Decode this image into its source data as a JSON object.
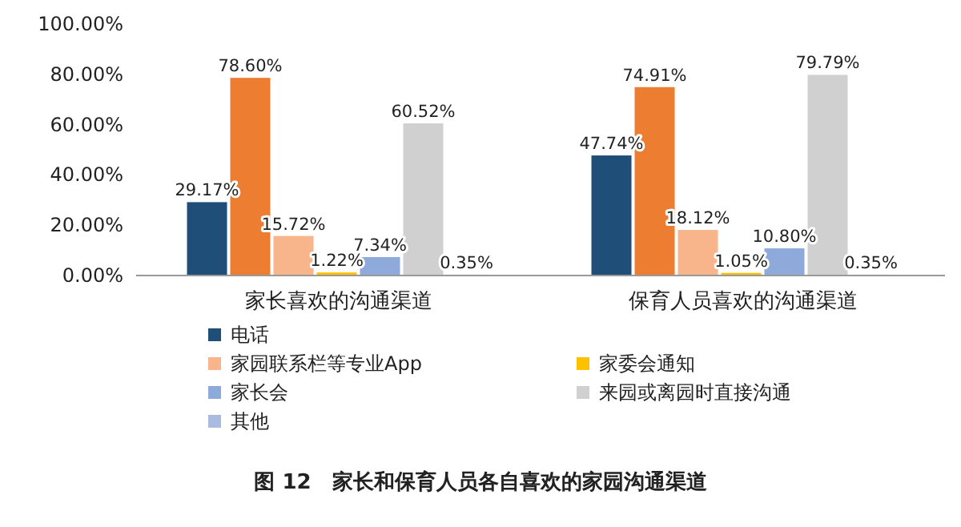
{
  "chart_data": {
    "type": "bar",
    "title": "图 12　家长和保育人员各自喜欢的家园沟通渠道",
    "categories": [
      "家长喜欢的沟通渠道",
      "保育人员喜欢的沟通渠道"
    ],
    "ylim": [
      0,
      100
    ],
    "yticks": [
      {
        "value": 0,
        "label": "0.00%"
      },
      {
        "value": 20,
        "label": "20.00%"
      },
      {
        "value": 40,
        "label": "40.00%"
      },
      {
        "value": 60,
        "label": "60.00%"
      },
      {
        "value": 80,
        "label": "80.00%"
      },
      {
        "value": 100,
        "label": "100.00%"
      }
    ],
    "grid": false,
    "legend": "bottom",
    "series": [
      {
        "name": "电话",
        "color": "#1f4e79",
        "values": [
          29.17,
          47.74
        ],
        "value_labels": [
          "29.17%",
          "47.74%"
        ]
      },
      {
        "color": "#ed7d31",
        "values": [
          78.6,
          74.91
        ],
        "value_labels": [
          "78.60%",
          "74.91%"
        ]
      },
      {
        "name": "家园联系栏等专业App",
        "color": "#f8b48a",
        "values": [
          15.72,
          18.12
        ],
        "value_labels": [
          "15.72%",
          "18.12%"
        ]
      },
      {
        "name": "家委会通知",
        "color": "#ffc000",
        "values": [
          1.22,
          1.05
        ],
        "value_labels": [
          "1.22%",
          "1.05%"
        ]
      },
      {
        "name": "家长会",
        "color": "#8eaadb",
        "values": [
          7.34,
          10.8
        ],
        "value_labels": [
          "7.34%",
          "10.80%"
        ]
      },
      {
        "name": "来园或离园时直接沟通",
        "color": "#d0d0d0",
        "values": [
          60.52,
          79.79
        ],
        "value_labels": [
          "60.52%",
          "79.79%"
        ]
      },
      {
        "name": "其他",
        "color": "#a9bce0",
        "values": [
          0.35,
          0.35
        ],
        "value_labels": [
          "0.35%",
          "0.35%"
        ]
      }
    ]
  }
}
